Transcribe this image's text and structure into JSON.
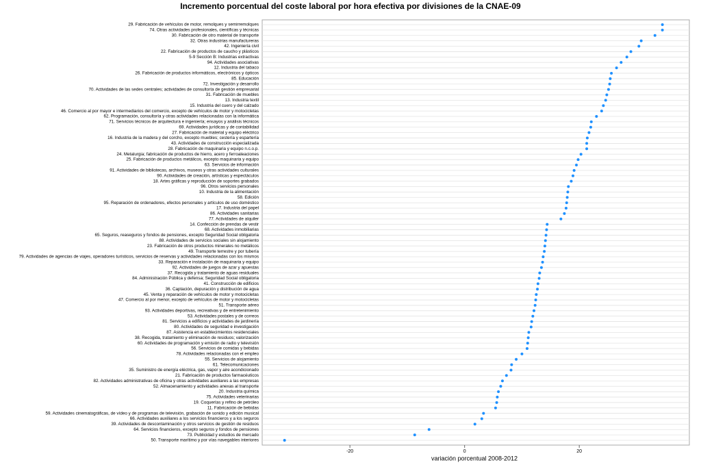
{
  "chart_data": {
    "type": "dot",
    "title": "Incremento porcentual del coste laboral por hora efectiva por divisiones de la CNAE-09",
    "x_label": "variación porcentual 2008-2012",
    "color": "#1e90ff",
    "xlim": [
      -35.3,
      39.2
    ],
    "xticks": [
      -20,
      0,
      20
    ],
    "grid": true,
    "categories": [
      "29. Fabricación de vehículos de motor, remolques y semirremolques",
      "74. Otras actividades profesionales, científicas y técnicas",
      "30. Fabricación de otro material de transporte",
      "32. Otras industrias manufactureras",
      "42. Ingeniería civil",
      "22. Fabricación de productos de caucho y plásticos",
      "5-9 Sección B: Industrias extractivas",
      "94. Actividades asociativas",
      "12. Industria del tabaco",
      "26. Fabricación de productos informáticos, electrónicos y ópticos",
      "85. Educación",
      "72. Investigación y desarrollo",
      "70. Actividades de las sedes centrales; actividades de consultoría de gestión empresarial",
      "31. Fabricación de muebles",
      "13. Industria textil",
      "15. Industria del cuero y del calzado",
      "46. Comercio al por mayor e intermediarios del comercio, excepto de vehículos de motor y motocicletas",
      "62. Programación, consultoría y otras actividades relacionadas con la informática",
      "71. Servicios técnicos de arquitectura e ingeniería; ensayos y análisis técnicos",
      "69. Actividades jurídicas y de contabilidad",
      "27. Fabricación de material y equipo eléctrico",
      "16. Industria de la madera y del corcho, excepto muebles; cestería y espartería",
      "43. Actividades de construcción especializada",
      "28. Fabricación de maquinaria y equipo n.c.o.p.",
      "24. Metalurgia; fabricación de productos de hierro, acero y ferroaleaciones",
      "25. Fabricación de productos metálicos, excepto maquinaria y equipo",
      "63. Servicios de información",
      "91. Actividades de bibliotecas, archivos, museos y otras actividades culturales",
      "90. Actividades de creación, artísticas y espectáculos",
      "18. Artes gráficas y reproducción de soportes grabados",
      "96. Otros servicios personales",
      "10. Industria de la alimentación",
      "58. Edición",
      "95. Reparación de ordenadores, efectos personales y artículos de uso doméstico",
      "17. Industria del papel",
      "86. Actividades sanitarias",
      "77. Actividades de alquiler",
      "14. Confección de prendas de vestir",
      "68. Actividades inmobiliarias",
      "65. Seguros, reaseguros y fondos de pensiones, excepto Seguridad Social obligatoria",
      "88. Actividades de servicios sociales sin alojamiento",
      "23. Fabricación de otros productos minerales no metálicos",
      "49. Transporte terrestre y por tubería",
      "79. Actividades de agencias de viajes, operadores turísticos, servicios de reservas y actividades relacionadas con los mismos",
      "33. Reparación e instalación de maquinaria y equipo",
      "92. Actividades de juegos de azar y apuestas",
      "37. Recogida y tratamiento de aguas residuales",
      "84. Administración Pública y defensa; Seguridad Social obligatoria",
      "41. Construcción de edificios",
      "36. Captación, depuración y distribución de agua",
      "45. Venta y reparación de vehículos de motor y motocicletas",
      "47. Comercio al por menor, excepto de vehículos de motor y motocicletas",
      "51. Transporte aéreo",
      "93. Actividades deportivas, recreativas y de entretenimiento",
      "53. Actividades postales y de correos",
      "81. Servicios a edificios y actividades de jardinería",
      "80. Actividades de seguridad e investigación",
      "87. Asistencia en establecimientos residenciales",
      "38. Recogida, tratamiento y eliminación de residuos; valorización",
      "60. Actividades de programación y emisión de radio y televisión",
      "56. Servicios de comidas y bebidas",
      "78. Actividades relacionadas con el empleo",
      "55. Servicios de alojamiento",
      "61. Telecomunicaciones",
      "35. Suministro de energía eléctrica, gas, vapor y aire acondicionado",
      "21. Fabricación de productos farmacéuticos",
      "82. Actividades administrativas de oficina y otras actividades auxiliares a las empresas",
      "52. Almacenamiento y actividades anexas al transporte",
      "20. Industria química",
      "75. Actividades veterinarias",
      "19. Coquerías y refino de petróleo",
      "11. Fabricación de bebidas",
      "59. Actividades cinematográficas, de vídeo y de programas de televisión, grabación de sonido y edición musical",
      "66. Actividades auxiliares a los servicios financieros y a los seguros",
      "39. Actividades de descontaminación y otros servicios de gestión de residuos",
      "64. Servicios financieros, excepto seguros y fondos de pensiones",
      "73. Publicidad y estudios de mercado",
      "50. Transporte marítimo y por vías navegables interiores"
    ],
    "values": [
      34.5,
      34.5,
      33.2,
      30.8,
      30.4,
      29.0,
      28.3,
      27.3,
      26.5,
      25.6,
      25.4,
      25.3,
      25.1,
      24.8,
      24.6,
      24.2,
      23.9,
      23.0,
      22.1,
      22.0,
      21.7,
      21.4,
      21.3,
      21.3,
      20.3,
      19.8,
      19.5,
      19.1,
      18.9,
      18.6,
      18.1,
      18.0,
      17.9,
      17.8,
      17.7,
      17.4,
      16.8,
      14.4,
      14.3,
      14.2,
      14.1,
      14.0,
      13.9,
      13.7,
      13.6,
      13.4,
      13.1,
      13.0,
      12.8,
      12.7,
      12.5,
      12.4,
      12.3,
      12.1,
      11.9,
      11.7,
      11.6,
      11.2,
      11.1,
      11.0,
      10.9,
      10.0,
      9.0,
      8.2,
      8.1,
      7.3,
      6.6,
      6.3,
      5.9,
      5.7,
      5.6,
      5.4,
      3.3,
      3.0,
      1.8,
      -6.2,
      -8.7,
      -31.4
    ]
  }
}
